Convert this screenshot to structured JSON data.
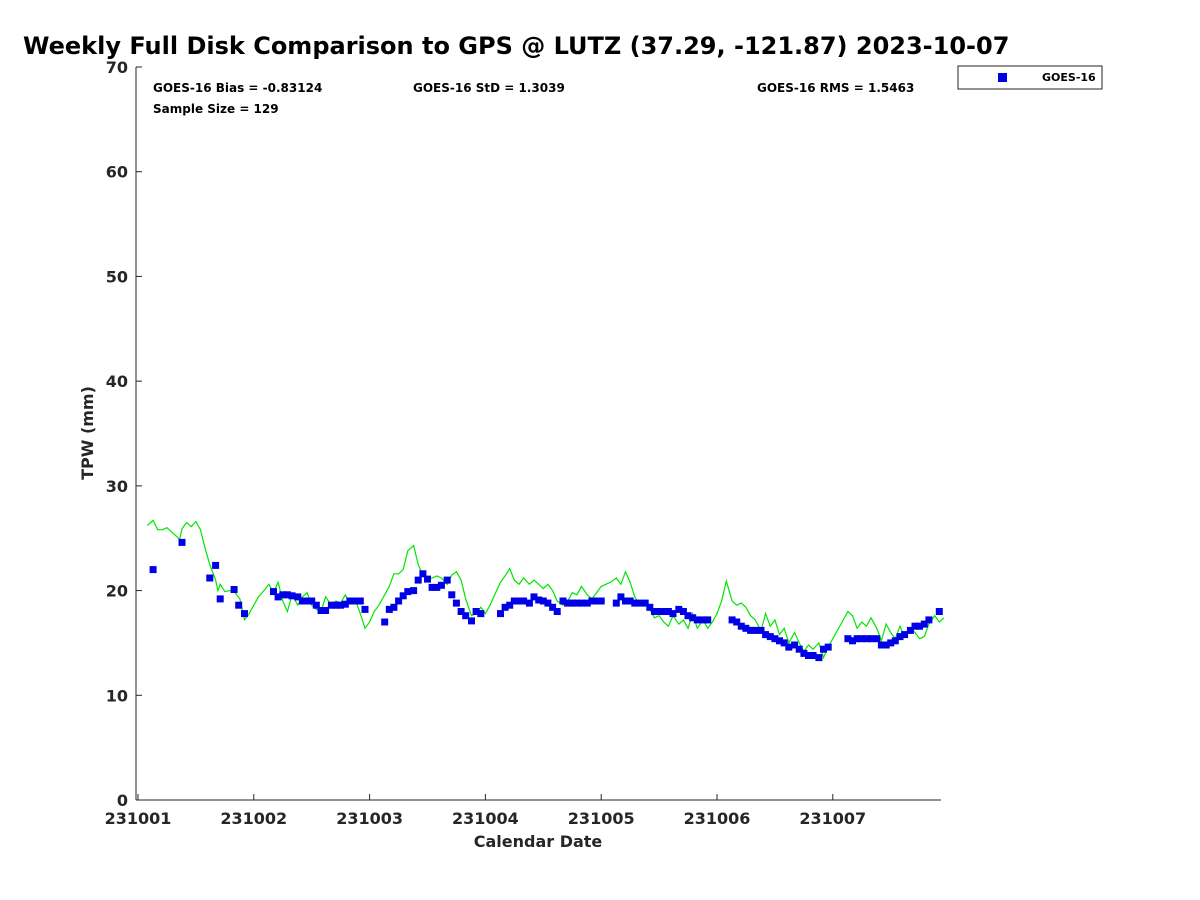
{
  "chart_data": {
    "type": "scatter",
    "title": "Weekly Full Disk Comparison to GPS @ LUTZ (37.29, -121.87) 2023-10-07",
    "xlabel": "Calendar Date",
    "ylabel": "TPW (mm)",
    "xlim": [
      "231001",
      "231008"
    ],
    "ylim": [
      0,
      70
    ],
    "x_ticks": [
      "231001",
      "231002",
      "231003",
      "231004",
      "231005",
      "231006",
      "231007"
    ],
    "y_ticks": [
      0,
      10,
      20,
      30,
      40,
      50,
      60,
      70
    ],
    "grid": false,
    "legend_position": "top-right",
    "legend": [
      {
        "label": "GOES-16",
        "marker": "square",
        "color": "#0000e6"
      }
    ],
    "annotations": {
      "bias": "GOES-16 Bias = -0.83124",
      "std": "GOES-16 StD = 1.3039",
      "rms": "GOES-16 RMS = 1.5463",
      "sample": "Sample Size = 129"
    },
    "series": [
      {
        "name": "GOES-16",
        "style": "markers",
        "color": "#0000e6",
        "points": [
          [
            0.13,
            22.0
          ],
          [
            0.38,
            24.6
          ],
          [
            0.62,
            21.2
          ],
          [
            0.67,
            22.4
          ],
          [
            0.71,
            19.2
          ],
          [
            0.83,
            20.1
          ],
          [
            0.87,
            18.6
          ],
          [
            0.92,
            17.8
          ],
          [
            1.17,
            19.9
          ],
          [
            1.21,
            19.4
          ],
          [
            1.25,
            19.6
          ],
          [
            1.29,
            19.6
          ],
          [
            1.33,
            19.5
          ],
          [
            1.38,
            19.4
          ],
          [
            1.42,
            19.0
          ],
          [
            1.46,
            19.0
          ],
          [
            1.5,
            19.0
          ],
          [
            1.54,
            18.6
          ],
          [
            1.58,
            18.1
          ],
          [
            1.62,
            18.1
          ],
          [
            1.67,
            18.6
          ],
          [
            1.71,
            18.6
          ],
          [
            1.75,
            18.6
          ],
          [
            1.79,
            18.7
          ],
          [
            1.83,
            19.0
          ],
          [
            1.88,
            19.0
          ],
          [
            1.92,
            19.0
          ],
          [
            1.96,
            18.2
          ],
          [
            2.13,
            17.0
          ],
          [
            2.17,
            18.2
          ],
          [
            2.21,
            18.4
          ],
          [
            2.25,
            19.0
          ],
          [
            2.29,
            19.5
          ],
          [
            2.33,
            19.9
          ],
          [
            2.38,
            20.0
          ],
          [
            2.42,
            21.0
          ],
          [
            2.46,
            21.6
          ],
          [
            2.5,
            21.1
          ],
          [
            2.54,
            20.3
          ],
          [
            2.58,
            20.3
          ],
          [
            2.62,
            20.5
          ],
          [
            2.67,
            21.0
          ],
          [
            2.71,
            19.6
          ],
          [
            2.75,
            18.8
          ],
          [
            2.79,
            18.0
          ],
          [
            2.83,
            17.6
          ],
          [
            2.88,
            17.1
          ],
          [
            2.92,
            18.0
          ],
          [
            2.96,
            17.8
          ],
          [
            3.13,
            17.8
          ],
          [
            3.17,
            18.4
          ],
          [
            3.21,
            18.6
          ],
          [
            3.25,
            19.0
          ],
          [
            3.29,
            19.0
          ],
          [
            3.33,
            19.0
          ],
          [
            3.38,
            18.8
          ],
          [
            3.42,
            19.4
          ],
          [
            3.46,
            19.1
          ],
          [
            3.5,
            19.0
          ],
          [
            3.54,
            18.8
          ],
          [
            3.58,
            18.4
          ],
          [
            3.62,
            18.0
          ],
          [
            3.67,
            19.0
          ],
          [
            3.71,
            18.8
          ],
          [
            3.75,
            18.8
          ],
          [
            3.79,
            18.8
          ],
          [
            3.83,
            18.8
          ],
          [
            3.88,
            18.8
          ],
          [
            3.92,
            19.0
          ],
          [
            3.96,
            19.0
          ],
          [
            4.0,
            19.0
          ],
          [
            4.13,
            18.8
          ],
          [
            4.17,
            19.4
          ],
          [
            4.21,
            19.0
          ],
          [
            4.25,
            19.0
          ],
          [
            4.29,
            18.8
          ],
          [
            4.33,
            18.8
          ],
          [
            4.38,
            18.8
          ],
          [
            4.42,
            18.4
          ],
          [
            4.46,
            18.0
          ],
          [
            4.5,
            18.0
          ],
          [
            4.54,
            18.0
          ],
          [
            4.58,
            18.0
          ],
          [
            4.62,
            17.8
          ],
          [
            4.67,
            18.2
          ],
          [
            4.71,
            18.0
          ],
          [
            4.75,
            17.6
          ],
          [
            4.79,
            17.4
          ],
          [
            4.83,
            17.2
          ],
          [
            4.88,
            17.2
          ],
          [
            4.92,
            17.2
          ],
          [
            5.13,
            17.2
          ],
          [
            5.17,
            17.0
          ],
          [
            5.21,
            16.6
          ],
          [
            5.25,
            16.4
          ],
          [
            5.29,
            16.2
          ],
          [
            5.33,
            16.2
          ],
          [
            5.38,
            16.2
          ],
          [
            5.42,
            15.8
          ],
          [
            5.46,
            15.6
          ],
          [
            5.5,
            15.4
          ],
          [
            5.54,
            15.2
          ],
          [
            5.58,
            15.0
          ],
          [
            5.62,
            14.6
          ],
          [
            5.67,
            14.8
          ],
          [
            5.71,
            14.4
          ],
          [
            5.75,
            14.0
          ],
          [
            5.79,
            13.8
          ],
          [
            5.83,
            13.8
          ],
          [
            5.88,
            13.6
          ],
          [
            5.92,
            14.4
          ],
          [
            5.96,
            14.6
          ],
          [
            6.13,
            15.4
          ],
          [
            6.17,
            15.2
          ],
          [
            6.21,
            15.4
          ],
          [
            6.25,
            15.4
          ],
          [
            6.29,
            15.4
          ],
          [
            6.33,
            15.4
          ],
          [
            6.38,
            15.4
          ],
          [
            6.42,
            14.8
          ],
          [
            6.46,
            14.8
          ],
          [
            6.5,
            15.0
          ],
          [
            6.54,
            15.2
          ],
          [
            6.58,
            15.6
          ],
          [
            6.62,
            15.8
          ],
          [
            6.67,
            16.2
          ],
          [
            6.71,
            16.6
          ],
          [
            6.75,
            16.6
          ],
          [
            6.79,
            16.8
          ],
          [
            6.83,
            17.2
          ],
          [
            6.92,
            18.0
          ]
        ]
      },
      {
        "name": "GPS",
        "style": "line",
        "color": "#00e600",
        "points": [
          [
            0.08,
            26.2
          ],
          [
            0.13,
            26.7
          ],
          [
            0.17,
            25.8
          ],
          [
            0.21,
            25.8
          ],
          [
            0.25,
            26.0
          ],
          [
            0.29,
            25.6
          ],
          [
            0.33,
            25.2
          ],
          [
            0.36,
            24.9
          ],
          [
            0.38,
            25.9
          ],
          [
            0.42,
            26.5
          ],
          [
            0.46,
            26.1
          ],
          [
            0.5,
            26.6
          ],
          [
            0.54,
            25.8
          ],
          [
            0.58,
            24.0
          ],
          [
            0.62,
            22.5
          ],
          [
            0.67,
            21.0
          ],
          [
            0.69,
            20.0
          ],
          [
            0.71,
            20.6
          ],
          [
            0.75,
            19.9
          ],
          [
            0.79,
            20.0
          ],
          [
            0.83,
            19.9
          ],
          [
            0.88,
            19.2
          ],
          [
            0.92,
            17.2
          ],
          [
            0.96,
            17.8
          ],
          [
            1.0,
            18.6
          ],
          [
            1.04,
            19.4
          ],
          [
            1.08,
            19.9
          ],
          [
            1.13,
            20.6
          ],
          [
            1.17,
            19.8
          ],
          [
            1.21,
            20.8
          ],
          [
            1.25,
            19.0
          ],
          [
            1.29,
            18.0
          ],
          [
            1.33,
            19.6
          ],
          [
            1.38,
            18.6
          ],
          [
            1.42,
            19.4
          ],
          [
            1.46,
            19.8
          ],
          [
            1.5,
            18.6
          ],
          [
            1.54,
            18.2
          ],
          [
            1.58,
            18.0
          ],
          [
            1.62,
            19.4
          ],
          [
            1.67,
            18.6
          ],
          [
            1.71,
            19.0
          ],
          [
            1.75,
            18.8
          ],
          [
            1.79,
            19.6
          ],
          [
            1.83,
            18.8
          ],
          [
            1.88,
            19.0
          ],
          [
            1.92,
            17.8
          ],
          [
            1.96,
            16.4
          ],
          [
            2.0,
            17.0
          ],
          [
            2.04,
            18.0
          ],
          [
            2.08,
            18.6
          ],
          [
            2.13,
            19.6
          ],
          [
            2.17,
            20.4
          ],
          [
            2.21,
            21.6
          ],
          [
            2.25,
            21.6
          ],
          [
            2.29,
            22.0
          ],
          [
            2.33,
            23.8
          ],
          [
            2.38,
            24.3
          ],
          [
            2.42,
            22.5
          ],
          [
            2.46,
            21.4
          ],
          [
            2.5,
            21.0
          ],
          [
            2.54,
            21.2
          ],
          [
            2.58,
            21.4
          ],
          [
            2.62,
            21.2
          ],
          [
            2.67,
            20.6
          ],
          [
            2.71,
            21.5
          ],
          [
            2.75,
            21.8
          ],
          [
            2.79,
            21.0
          ],
          [
            2.83,
            19.2
          ],
          [
            2.88,
            17.6
          ],
          [
            2.92,
            17.8
          ],
          [
            2.96,
            18.4
          ],
          [
            3.0,
            17.8
          ],
          [
            3.04,
            18.6
          ],
          [
            3.08,
            19.6
          ],
          [
            3.13,
            20.8
          ],
          [
            3.17,
            21.4
          ],
          [
            3.21,
            22.1
          ],
          [
            3.25,
            21.0
          ],
          [
            3.29,
            20.6
          ],
          [
            3.33,
            21.2
          ],
          [
            3.38,
            20.6
          ],
          [
            3.42,
            21.0
          ],
          [
            3.46,
            20.6
          ],
          [
            3.5,
            20.2
          ],
          [
            3.54,
            20.6
          ],
          [
            3.58,
            20.0
          ],
          [
            3.62,
            19.0
          ],
          [
            3.67,
            18.6
          ],
          [
            3.71,
            19.0
          ],
          [
            3.75,
            19.8
          ],
          [
            3.79,
            19.6
          ],
          [
            3.83,
            20.4
          ],
          [
            3.88,
            19.6
          ],
          [
            3.92,
            19.2
          ],
          [
            3.96,
            19.8
          ],
          [
            4.0,
            20.4
          ],
          [
            4.04,
            20.6
          ],
          [
            4.08,
            20.8
          ],
          [
            4.13,
            21.2
          ],
          [
            4.17,
            20.6
          ],
          [
            4.21,
            21.8
          ],
          [
            4.25,
            20.8
          ],
          [
            4.29,
            19.4
          ],
          [
            4.33,
            18.6
          ],
          [
            4.38,
            19.0
          ],
          [
            4.42,
            18.2
          ],
          [
            4.46,
            17.4
          ],
          [
            4.5,
            17.6
          ],
          [
            4.54,
            17.0
          ],
          [
            4.58,
            16.6
          ],
          [
            4.62,
            17.6
          ],
          [
            4.67,
            16.8
          ],
          [
            4.71,
            17.2
          ],
          [
            4.75,
            16.4
          ],
          [
            4.79,
            17.8
          ],
          [
            4.83,
            16.4
          ],
          [
            4.88,
            17.2
          ],
          [
            4.92,
            16.4
          ],
          [
            4.96,
            17.0
          ],
          [
            5.0,
            17.8
          ],
          [
            5.04,
            19.0
          ],
          [
            5.08,
            20.9
          ],
          [
            5.13,
            19.0
          ],
          [
            5.17,
            18.6
          ],
          [
            5.21,
            18.8
          ],
          [
            5.25,
            18.4
          ],
          [
            5.29,
            17.6
          ],
          [
            5.33,
            17.2
          ],
          [
            5.38,
            16.2
          ],
          [
            5.42,
            17.8
          ],
          [
            5.46,
            16.6
          ],
          [
            5.5,
            17.2
          ],
          [
            5.54,
            15.8
          ],
          [
            5.58,
            16.4
          ],
          [
            5.62,
            15.0
          ],
          [
            5.67,
            16.0
          ],
          [
            5.71,
            15.0
          ],
          [
            5.75,
            14.2
          ],
          [
            5.79,
            14.8
          ],
          [
            5.83,
            14.4
          ],
          [
            5.88,
            15.0
          ],
          [
            5.92,
            13.6
          ],
          [
            5.96,
            14.6
          ],
          [
            6.0,
            15.4
          ],
          [
            6.04,
            16.2
          ],
          [
            6.08,
            17.0
          ],
          [
            6.13,
            18.0
          ],
          [
            6.17,
            17.6
          ],
          [
            6.21,
            16.4
          ],
          [
            6.25,
            17.0
          ],
          [
            6.29,
            16.6
          ],
          [
            6.33,
            17.4
          ],
          [
            6.38,
            16.4
          ],
          [
            6.42,
            15.2
          ],
          [
            6.46,
            16.8
          ],
          [
            6.5,
            16.0
          ],
          [
            6.54,
            15.4
          ],
          [
            6.58,
            16.6
          ],
          [
            6.62,
            15.6
          ],
          [
            6.67,
            16.4
          ],
          [
            6.71,
            16.0
          ],
          [
            6.75,
            15.4
          ],
          [
            6.79,
            15.6
          ],
          [
            6.83,
            16.8
          ],
          [
            6.88,
            17.6
          ],
          [
            6.92,
            17.0
          ],
          [
            6.96,
            17.4
          ]
        ]
      }
    ]
  }
}
